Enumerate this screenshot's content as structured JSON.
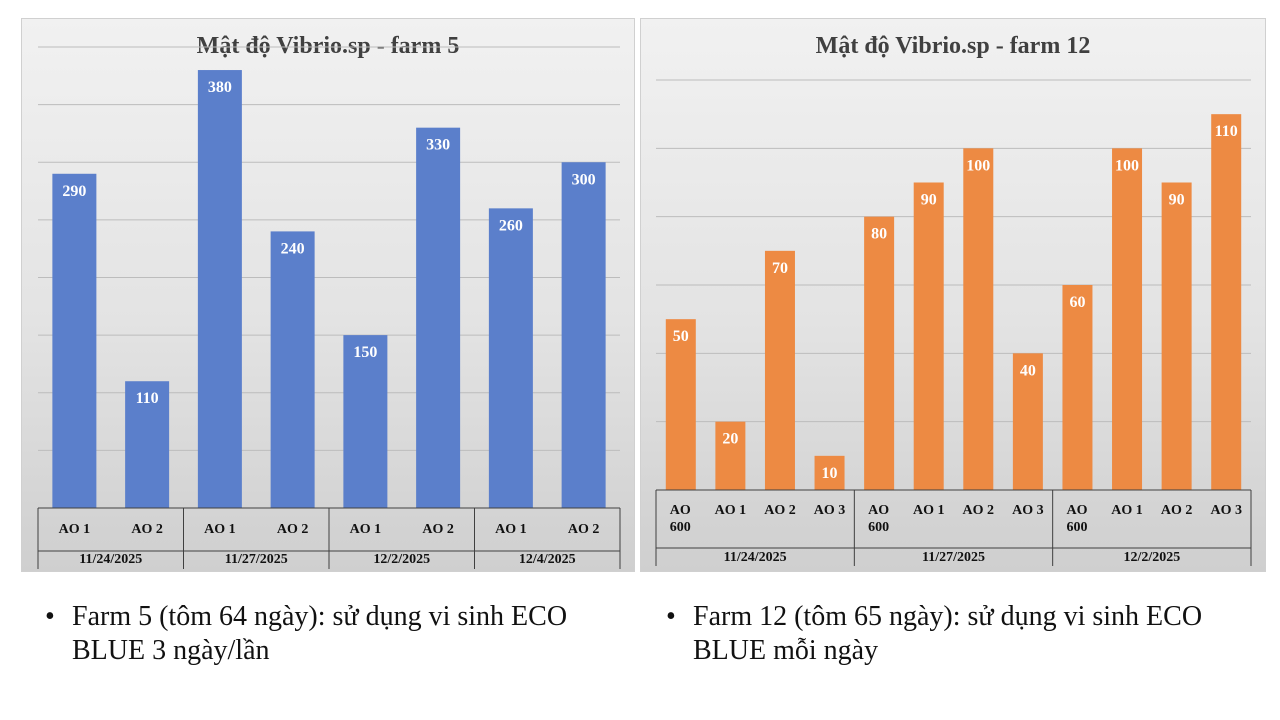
{
  "colors": {
    "farm5": "#5b7fcb",
    "farm12": "#ed8a43"
  },
  "chart_data": [
    {
      "type": "bar",
      "title": "Mật độ Vibrio.sp  - farm 5",
      "categories": [
        "AO 1",
        "AO 2",
        "AO 1",
        "AO 2",
        "AO 1",
        "AO 2",
        "AO 1",
        "AO 2"
      ],
      "groups": [
        {
          "label": "11/24/2025",
          "count": 2
        },
        {
          "label": "11/27/2025",
          "count": 2
        },
        {
          "label": "12/2/2025",
          "count": 2
        },
        {
          "label": "12/4/2025",
          "count": 2
        }
      ],
      "values": [
        290,
        110,
        380,
        240,
        150,
        330,
        260,
        300
      ],
      "ylim": [
        0,
        400
      ],
      "grid_step": 50,
      "grid": true,
      "xlabel": "",
      "ylabel": ""
    },
    {
      "type": "bar",
      "title": "Mật độ Vibrio.sp  - farm 12",
      "categories": [
        "AO 600",
        "AO 1",
        "AO 2",
        "AO 3",
        "AO 600",
        "AO 1",
        "AO 2",
        "AO 3",
        "AO 600",
        "AO 1",
        "AO 2",
        "AO 3"
      ],
      "groups": [
        {
          "label": "11/24/2025",
          "count": 4
        },
        {
          "label": "11/27/2025",
          "count": 4
        },
        {
          "label": "12/2/2025",
          "count": 4
        }
      ],
      "values": [
        50,
        20,
        70,
        10,
        80,
        90,
        100,
        40,
        60,
        100,
        90,
        110
      ],
      "ylim": [
        0,
        120
      ],
      "grid_step": 20,
      "grid": true,
      "xlabel": "",
      "ylabel": ""
    }
  ],
  "bullets": [
    {
      "text": "Farm 5 (tôm 64 ngày): sử dụng vi sinh ECO BLUE 3 ngày/lần"
    },
    {
      "text": "Farm 12 (tôm 65 ngày): sử dụng vi sinh ECO BLUE mỗi ngày"
    }
  ]
}
